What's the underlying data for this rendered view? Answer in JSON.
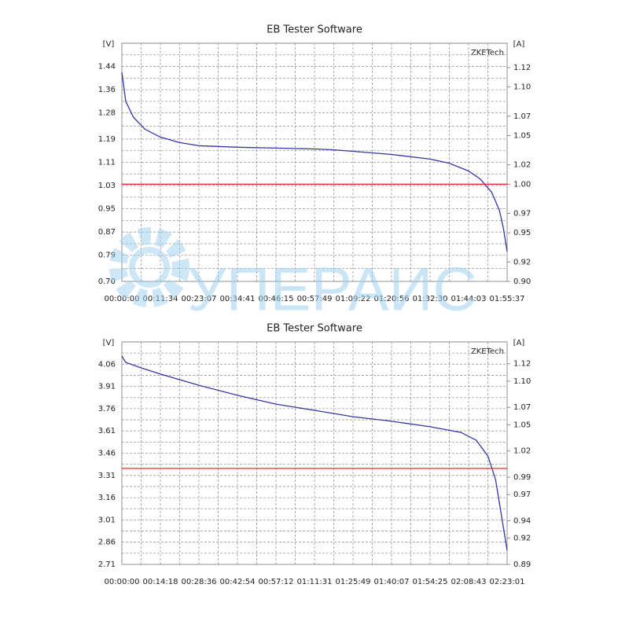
{
  "chart_data": [
    {
      "type": "line",
      "title": "EB Tester Software",
      "y_label": "[V]",
      "y2_label": "[A]",
      "brand": "ZKETech",
      "x": [
        0,
        69,
        208,
        416,
        694,
        1041,
        1387,
        2081,
        2775,
        3469,
        3815,
        4162,
        4856,
        5550,
        5896,
        6243,
        6452,
        6660,
        6798,
        6868,
        6937
      ],
      "series": [
        {
          "name": "Voltage",
          "color": "#3535a8",
          "values": [
            1.42,
            1.32,
            1.265,
            1.224,
            1.197,
            1.178,
            1.167,
            1.162,
            1.159,
            1.156,
            1.153,
            1.148,
            1.137,
            1.121,
            1.107,
            1.08,
            1.053,
            1.007,
            0.944,
            0.885,
            0.803
          ]
        },
        {
          "name": "Current",
          "color": "#e03030",
          "axis": "y2",
          "values": [
            1.0,
            1.0,
            1.0,
            1.0,
            1.0,
            1.0,
            1.0,
            1.0,
            1.0,
            1.0,
            1.0,
            1.0,
            1.0,
            1.0,
            1.0,
            1.0,
            1.0,
            1.0,
            1.0,
            1.0,
            1.0
          ]
        }
      ],
      "xlim": [
        0,
        6937
      ],
      "xticks": [
        {
          "value": 0,
          "label": "00:00:00"
        },
        {
          "value": 694,
          "label": "00:11:34"
        },
        {
          "value": 1387,
          "label": "00:23:07"
        },
        {
          "value": 2081,
          "label": "00:34:41"
        },
        {
          "value": 2775,
          "label": "00:46:15"
        },
        {
          "value": 3469,
          "label": "00:57:49"
        },
        {
          "value": 4162,
          "label": "01:09:22"
        },
        {
          "value": 4856,
          "label": "01:20:56"
        },
        {
          "value": 5550,
          "label": "01:32:30"
        },
        {
          "value": 6243,
          "label": "01:44:03"
        },
        {
          "value": 6937,
          "label": "01:55:37"
        }
      ],
      "ylim": [
        0.7,
        1.52
      ],
      "yticks": [
        {
          "value": 0.7,
          "label": "0.70"
        },
        0.79,
        0.87,
        0.95,
        1.03,
        1.11,
        1.19,
        1.28,
        1.36,
        1.44
      ],
      "y2lim": [
        0.9,
        1.145
      ],
      "y2ticks": [
        {
          "value": 0.9,
          "label": "0.90"
        },
        0.92,
        0.95,
        0.97,
        {
          "value": 1.0,
          "label": "1.00"
        },
        1.02,
        1.05,
        1.07,
        {
          "value": 1.1,
          "label": "1.10"
        },
        1.12
      ],
      "grid": true
    },
    {
      "type": "line",
      "title": "EB Tester Software",
      "y_label": "[V]",
      "y2_label": "[A]",
      "brand": "ZKETech",
      "x": [
        0,
        86,
        429,
        858,
        1716,
        2574,
        3432,
        4291,
        5149,
        6007,
        6865,
        7551,
        7895,
        8152,
        8324,
        8409,
        8495,
        8581
      ],
      "series": [
        {
          "name": "Voltage",
          "color": "#3535a8",
          "values": [
            4.115,
            4.072,
            4.035,
            3.993,
            3.918,
            3.85,
            3.791,
            3.749,
            3.706,
            3.675,
            3.638,
            3.6,
            3.547,
            3.441,
            3.282,
            3.123,
            2.964,
            2.805
          ]
        },
        {
          "name": "Current",
          "color": "#e03030",
          "axis": "y2",
          "values": [
            1.0,
            1.0,
            1.0,
            1.0,
            1.0,
            1.0,
            1.0,
            1.0,
            1.0,
            1.0,
            1.0,
            1.0,
            1.0,
            1.0,
            1.0,
            1.0,
            1.0,
            1.0
          ]
        }
      ],
      "xlim": [
        0,
        8581
      ],
      "xticks": [
        {
          "value": 0,
          "label": "00:00:00"
        },
        {
          "value": 858,
          "label": "00:14:18"
        },
        {
          "value": 1716,
          "label": "00:28:36"
        },
        {
          "value": 2574,
          "label": "00:42:54"
        },
        {
          "value": 3432,
          "label": "00:57:12"
        },
        {
          "value": 4291,
          "label": "01:11:31"
        },
        {
          "value": 5149,
          "label": "01:25:49"
        },
        {
          "value": 6007,
          "label": "01:40:07"
        },
        {
          "value": 6865,
          "label": "01:54:25"
        },
        {
          "value": 7723,
          "label": "02:08:43"
        },
        {
          "value": 8581,
          "label": "02:23:01"
        }
      ],
      "ylim": [
        2.71,
        4.21
      ],
      "yticks": [
        2.71,
        2.86,
        3.01,
        3.16,
        3.31,
        3.46,
        3.61,
        3.76,
        3.91,
        4.06
      ],
      "y2lim": [
        0.89,
        1.145
      ],
      "y2ticks": [
        0.89,
        0.92,
        0.94,
        0.97,
        0.99,
        1.02,
        1.05,
        1.07,
        {
          "value": 1.1,
          "label": "1.10"
        },
        1.12
      ],
      "grid": true
    }
  ],
  "watermark": "УПЕРАИС"
}
